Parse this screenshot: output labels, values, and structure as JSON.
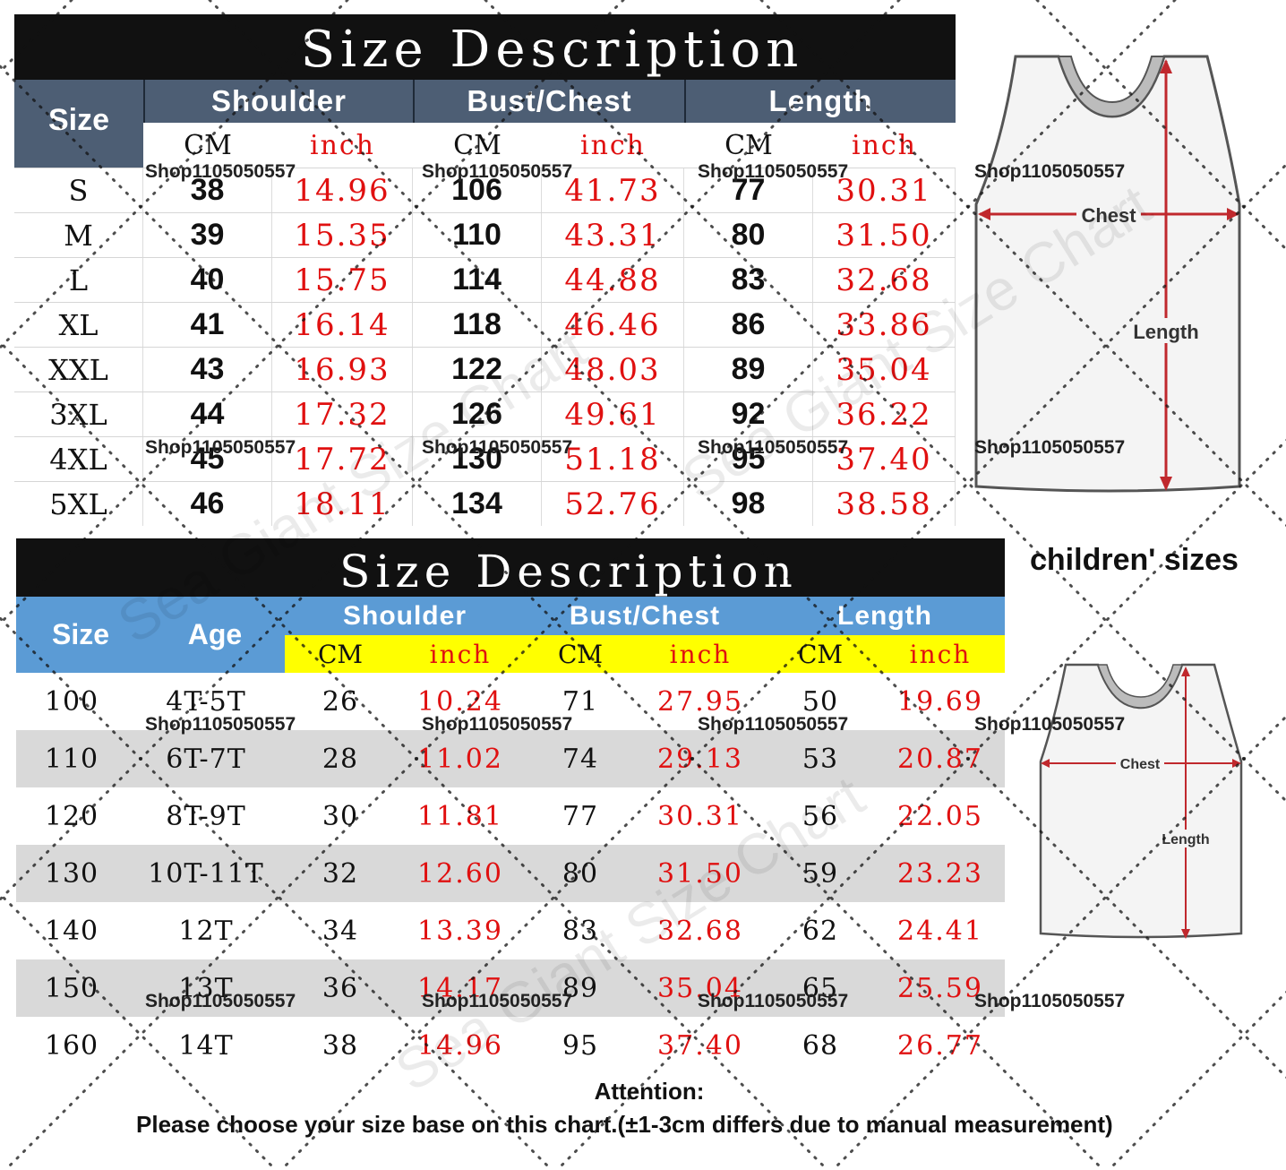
{
  "adult": {
    "title": "Size Description",
    "size_header": "Size",
    "groups": [
      "Shoulder",
      "Bust/Chest",
      "Length"
    ],
    "unit_cm": "CM",
    "unit_inch": "inch",
    "rows": [
      {
        "size": "S",
        "shoulder_cm": "38",
        "shoulder_in": "14.96",
        "bust_cm": "106",
        "bust_in": "41.73",
        "length_cm": "77",
        "length_in": "30.31"
      },
      {
        "size": "M",
        "shoulder_cm": "39",
        "shoulder_in": "15.35",
        "bust_cm": "110",
        "bust_in": "43.31",
        "length_cm": "80",
        "length_in": "31.50"
      },
      {
        "size": "L",
        "shoulder_cm": "40",
        "shoulder_in": "15.75",
        "bust_cm": "114",
        "bust_in": "44.88",
        "length_cm": "83",
        "length_in": "32.68"
      },
      {
        "size": "XL",
        "shoulder_cm": "41",
        "shoulder_in": "16.14",
        "bust_cm": "118",
        "bust_in": "46.46",
        "length_cm": "86",
        "length_in": "33.86"
      },
      {
        "size": "XXL",
        "shoulder_cm": "43",
        "shoulder_in": "16.93",
        "bust_cm": "122",
        "bust_in": "48.03",
        "length_cm": "89",
        "length_in": "35.04"
      },
      {
        "size": "3XL",
        "shoulder_cm": "44",
        "shoulder_in": "17.32",
        "bust_cm": "126",
        "bust_in": "49.61",
        "length_cm": "92",
        "length_in": "36.22"
      },
      {
        "size": "4XL",
        "shoulder_cm": "45",
        "shoulder_in": "17.72",
        "bust_cm": "130",
        "bust_in": "51.18",
        "length_cm": "95",
        "length_in": "37.40"
      },
      {
        "size": "5XL",
        "shoulder_cm": "46",
        "shoulder_in": "18.11",
        "bust_cm": "134",
        "bust_in": "52.76",
        "length_cm": "98",
        "length_in": "38.58"
      }
    ]
  },
  "child": {
    "title": "Size Description",
    "size_header": "Size",
    "age_header": "Age",
    "groups": [
      "Shoulder",
      "Bust/Chest",
      "Length"
    ],
    "unit_cm": "CM",
    "unit_inch": "inch",
    "rows": [
      {
        "size": "100",
        "age": "4T-5T",
        "shoulder_cm": "26",
        "shoulder_in": "10.24",
        "bust_cm": "71",
        "bust_in": "27.95",
        "length_cm": "50",
        "length_in": "19.69"
      },
      {
        "size": "110",
        "age": "6T-7T",
        "shoulder_cm": "28",
        "shoulder_in": "11.02",
        "bust_cm": "74",
        "bust_in": "29.13",
        "length_cm": "53",
        "length_in": "20.87"
      },
      {
        "size": "120",
        "age": "8T-9T",
        "shoulder_cm": "30",
        "shoulder_in": "11.81",
        "bust_cm": "77",
        "bust_in": "30.31",
        "length_cm": "56",
        "length_in": "22.05"
      },
      {
        "size": "130",
        "age": "10T-11T",
        "shoulder_cm": "32",
        "shoulder_in": "12.60",
        "bust_cm": "80",
        "bust_in": "31.50",
        "length_cm": "59",
        "length_in": "23.23"
      },
      {
        "size": "140",
        "age": "12T",
        "shoulder_cm": "34",
        "shoulder_in": "13.39",
        "bust_cm": "83",
        "bust_in": "32.68",
        "length_cm": "62",
        "length_in": "24.41"
      },
      {
        "size": "150",
        "age": "13T",
        "shoulder_cm": "36",
        "shoulder_in": "14.17",
        "bust_cm": "89",
        "bust_in": "35.04",
        "length_cm": "65",
        "length_in": "25.59"
      },
      {
        "size": "160",
        "age": "14T",
        "shoulder_cm": "38",
        "shoulder_in": "14.96",
        "bust_cm": "95",
        "bust_in": "37.40",
        "length_cm": "68",
        "length_in": "26.77"
      }
    ]
  },
  "diagram_adult": {
    "chest_label": "Chest",
    "length_label": "Length"
  },
  "diagram_child": {
    "heading": "children' sizes",
    "chest_label": "Chest",
    "length_label": "Length"
  },
  "attention": {
    "title": "Attention:",
    "text": "Please choose your size base on this chart.(±1-3cm differs due to manual measurement)"
  },
  "shop_mark": "Shop1105050557",
  "watermark": "Sea Giant Size Chart",
  "colors": {
    "adult_header": "#4d5e74",
    "child_header": "#5b9bd5",
    "unit_bar": "#ffff00",
    "inch_red": "#e01010",
    "title_bg": "#111111"
  },
  "icons": [
    "tank-top-icon",
    "tank-top-icon"
  ]
}
